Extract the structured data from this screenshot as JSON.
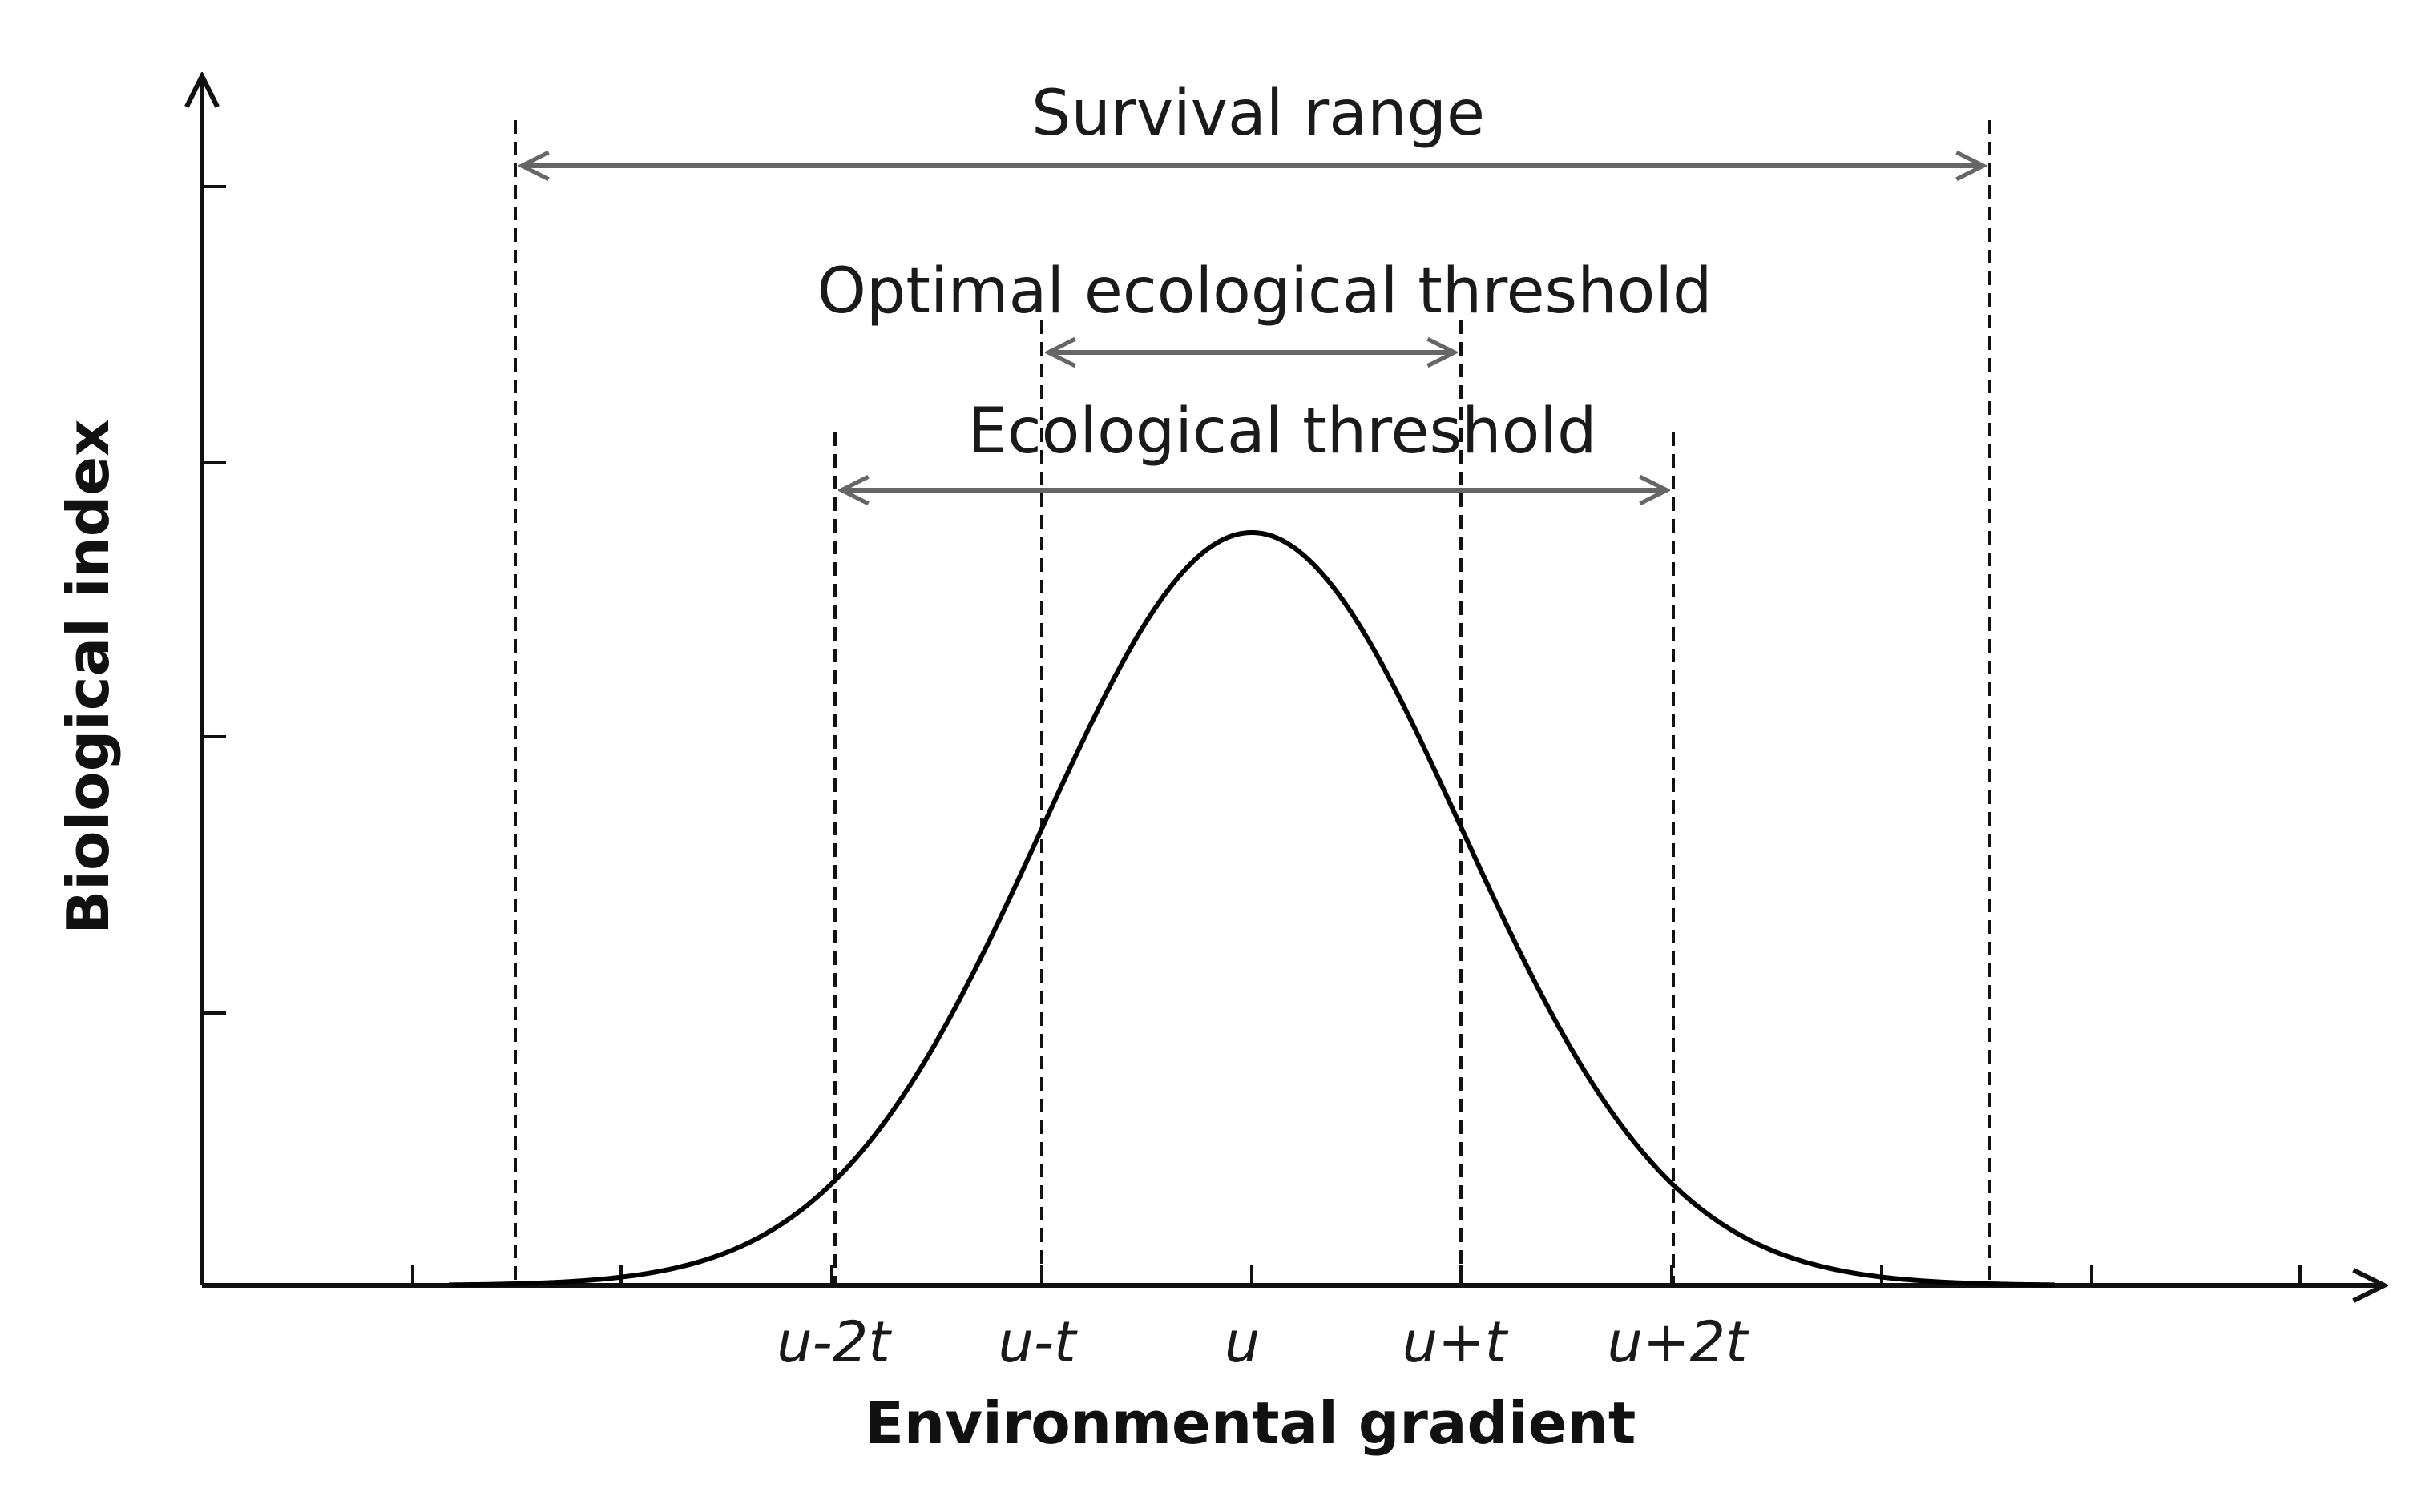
{
  "title": "",
  "axes": {
    "x_label": "Environmental gradient",
    "y_label": "Biological index"
  },
  "x_tick_labels": [
    {
      "key": "u_minus_2t",
      "text": "u-2t"
    },
    {
      "key": "u_minus_t",
      "text": "u-t"
    },
    {
      "key": "u",
      "text": "u"
    },
    {
      "key": "u_plus_t",
      "text": "u+t"
    },
    {
      "key": "u_plus_2t",
      "text": "u+2t"
    }
  ],
  "ranges": {
    "survival": {
      "label": "Survival range"
    },
    "optimal": {
      "label": "Optimal ecological threshold"
    },
    "ecological": {
      "label": "Ecological threshold"
    }
  },
  "colors": {
    "curve": "#000000",
    "arrows": "#666666",
    "axes": "#111111"
  }
}
